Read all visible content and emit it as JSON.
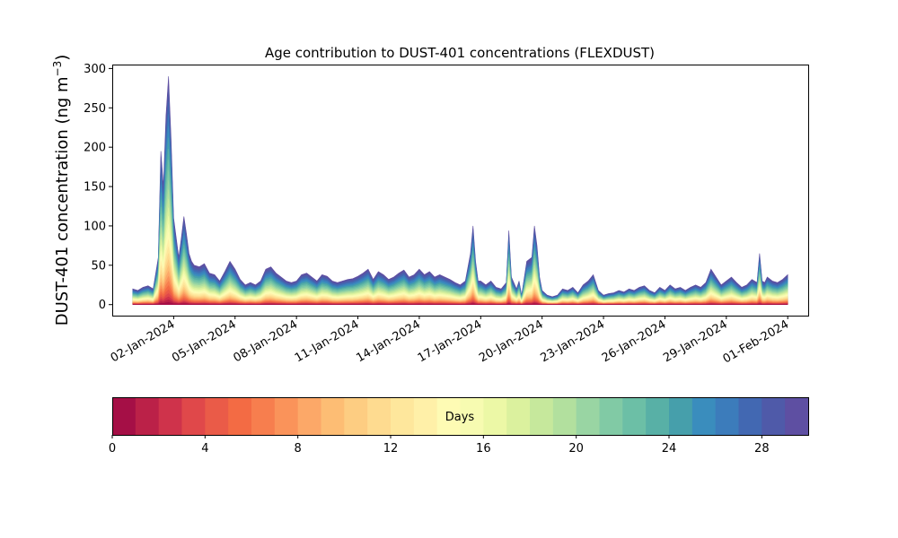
{
  "chart_data": {
    "type": "area",
    "stacked": true,
    "title": "Age contribution to DUST-401 concentrations (FLEXDUST)",
    "xlabel": "",
    "ylabel": "DUST-401 concentration (ng m",
    "ylabel_sup": "−3",
    "ylabel_close": ")",
    "x_start": "2023-12-31",
    "x_end": "2024-02-01",
    "xlim": [
      "2023-12-30",
      "2024-02-02"
    ],
    "ylim": [
      -14,
      305
    ],
    "yticks": [
      0,
      50,
      100,
      150,
      200,
      250,
      300
    ],
    "xtick_labels": [
      "02-Jan-2024",
      "05-Jan-2024",
      "08-Jan-2024",
      "11-Jan-2024",
      "14-Jan-2024",
      "17-Jan-2024",
      "20-Jan-2024",
      "23-Jan-2024",
      "26-Jan-2024",
      "29-Jan-2024",
      "01-Feb-2024"
    ],
    "age_days": [
      0,
      1,
      2,
      3,
      4,
      5,
      6,
      7,
      8,
      9,
      10,
      11,
      12,
      13,
      14,
      15,
      16,
      17,
      18,
      19,
      20,
      21,
      22,
      23,
      24,
      25,
      26,
      27,
      28,
      29
    ],
    "total_concentration": [
      [
        "2023-12-31T00",
        20
      ],
      [
        "2023-12-31T06",
        18
      ],
      [
        "2023-12-31T12",
        22
      ],
      [
        "2023-12-31T18",
        24
      ],
      [
        "2024-01-01T00",
        20
      ],
      [
        "2024-01-01T06",
        60
      ],
      [
        "2024-01-01T09",
        195
      ],
      [
        "2024-01-01T12",
        150
      ],
      [
        "2024-01-01T15",
        240
      ],
      [
        "2024-01-01T18",
        290
      ],
      [
        "2024-01-01T21",
        210
      ],
      [
        "2024-01-02T00",
        110
      ],
      [
        "2024-01-02T06",
        60
      ],
      [
        "2024-01-02T09",
        85
      ],
      [
        "2024-01-02T12",
        112
      ],
      [
        "2024-01-02T15",
        90
      ],
      [
        "2024-01-02T18",
        65
      ],
      [
        "2024-01-02T21",
        55
      ],
      [
        "2024-01-03T00",
        50
      ],
      [
        "2024-01-03T06",
        48
      ],
      [
        "2024-01-03T12",
        52
      ],
      [
        "2024-01-03T18",
        40
      ],
      [
        "2024-01-04T00",
        38
      ],
      [
        "2024-01-04T06",
        30
      ],
      [
        "2024-01-04T12",
        42
      ],
      [
        "2024-01-04T18",
        55
      ],
      [
        "2024-01-05T00",
        45
      ],
      [
        "2024-01-05T06",
        32
      ],
      [
        "2024-01-05T12",
        25
      ],
      [
        "2024-01-05T18",
        28
      ],
      [
        "2024-01-06T00",
        25
      ],
      [
        "2024-01-06T06",
        30
      ],
      [
        "2024-01-06T12",
        45
      ],
      [
        "2024-01-06T18",
        48
      ],
      [
        "2024-01-07T00",
        40
      ],
      [
        "2024-01-07T06",
        35
      ],
      [
        "2024-01-07T12",
        30
      ],
      [
        "2024-01-07T18",
        28
      ],
      [
        "2024-01-08T00",
        30
      ],
      [
        "2024-01-08T06",
        38
      ],
      [
        "2024-01-08T12",
        40
      ],
      [
        "2024-01-08T18",
        35
      ],
      [
        "2024-01-09T00",
        30
      ],
      [
        "2024-01-09T06",
        38
      ],
      [
        "2024-01-09T12",
        36
      ],
      [
        "2024-01-09T18",
        30
      ],
      [
        "2024-01-10T00",
        28
      ],
      [
        "2024-01-10T06",
        30
      ],
      [
        "2024-01-10T12",
        32
      ],
      [
        "2024-01-10T18",
        33
      ],
      [
        "2024-01-11T00",
        36
      ],
      [
        "2024-01-11T06",
        40
      ],
      [
        "2024-01-11T12",
        45
      ],
      [
        "2024-01-11T18",
        32
      ],
      [
        "2024-01-12T00",
        42
      ],
      [
        "2024-01-12T06",
        38
      ],
      [
        "2024-01-12T12",
        32
      ],
      [
        "2024-01-12T18",
        35
      ],
      [
        "2024-01-13T00",
        40
      ],
      [
        "2024-01-13T06",
        44
      ],
      [
        "2024-01-13T12",
        35
      ],
      [
        "2024-01-13T18",
        38
      ],
      [
        "2024-01-14T00",
        45
      ],
      [
        "2024-01-14T06",
        38
      ],
      [
        "2024-01-14T12",
        42
      ],
      [
        "2024-01-14T18",
        35
      ],
      [
        "2024-01-15T00",
        38
      ],
      [
        "2024-01-15T06",
        35
      ],
      [
        "2024-01-15T12",
        32
      ],
      [
        "2024-01-15T18",
        28
      ],
      [
        "2024-01-16T00",
        25
      ],
      [
        "2024-01-16T06",
        30
      ],
      [
        "2024-01-16T12",
        65
      ],
      [
        "2024-01-16T15",
        100
      ],
      [
        "2024-01-16T18",
        55
      ],
      [
        "2024-01-16T21",
        30
      ],
      [
        "2024-01-17T00",
        30
      ],
      [
        "2024-01-17T06",
        25
      ],
      [
        "2024-01-17T12",
        30
      ],
      [
        "2024-01-17T18",
        22
      ],
      [
        "2024-01-18T00",
        20
      ],
      [
        "2024-01-18T06",
        28
      ],
      [
        "2024-01-18T09",
        94
      ],
      [
        "2024-01-18T12",
        35
      ],
      [
        "2024-01-18T18",
        20
      ],
      [
        "2024-01-18T21",
        30
      ],
      [
        "2024-01-19T00",
        12
      ],
      [
        "2024-01-19T06",
        55
      ],
      [
        "2024-01-19T12",
        60
      ],
      [
        "2024-01-19T15",
        100
      ],
      [
        "2024-01-19T18",
        75
      ],
      [
        "2024-01-19T21",
        35
      ],
      [
        "2024-01-20T00",
        18
      ],
      [
        "2024-01-20T06",
        12
      ],
      [
        "2024-01-20T12",
        10
      ],
      [
        "2024-01-20T18",
        12
      ],
      [
        "2024-01-21T00",
        20
      ],
      [
        "2024-01-21T06",
        18
      ],
      [
        "2024-01-21T12",
        22
      ],
      [
        "2024-01-21T18",
        15
      ],
      [
        "2024-01-22T00",
        25
      ],
      [
        "2024-01-22T06",
        30
      ],
      [
        "2024-01-22T12",
        38
      ],
      [
        "2024-01-22T18",
        18
      ],
      [
        "2024-01-23T00",
        12
      ],
      [
        "2024-01-23T06",
        14
      ],
      [
        "2024-01-23T12",
        15
      ],
      [
        "2024-01-23T18",
        18
      ],
      [
        "2024-01-24T00",
        16
      ],
      [
        "2024-01-24T06",
        20
      ],
      [
        "2024-01-24T12",
        18
      ],
      [
        "2024-01-24T18",
        22
      ],
      [
        "2024-01-25T00",
        24
      ],
      [
        "2024-01-25T06",
        18
      ],
      [
        "2024-01-25T12",
        15
      ],
      [
        "2024-01-25T18",
        22
      ],
      [
        "2024-01-26T00",
        18
      ],
      [
        "2024-01-26T06",
        25
      ],
      [
        "2024-01-26T12",
        20
      ],
      [
        "2024-01-26T18",
        22
      ],
      [
        "2024-01-27T00",
        18
      ],
      [
        "2024-01-27T06",
        22
      ],
      [
        "2024-01-27T12",
        25
      ],
      [
        "2024-01-27T18",
        22
      ],
      [
        "2024-01-28T00",
        28
      ],
      [
        "2024-01-28T06",
        45
      ],
      [
        "2024-01-28T12",
        35
      ],
      [
        "2024-01-28T18",
        25
      ],
      [
        "2024-01-29T00",
        30
      ],
      [
        "2024-01-29T06",
        35
      ],
      [
        "2024-01-29T12",
        28
      ],
      [
        "2024-01-29T18",
        22
      ],
      [
        "2024-01-30T00",
        25
      ],
      [
        "2024-01-30T06",
        32
      ],
      [
        "2024-01-30T12",
        28
      ],
      [
        "2024-01-30T15",
        65
      ],
      [
        "2024-01-30T18",
        30
      ],
      [
        "2024-01-30T21",
        28
      ],
      [
        "2024-01-31T00",
        35
      ],
      [
        "2024-01-31T06",
        30
      ],
      [
        "2024-01-31T12",
        28
      ],
      [
        "2024-01-31T18",
        32
      ],
      [
        "2024-02-01T00",
        38
      ]
    ]
  },
  "colorbar": {
    "label": "Days",
    "range": [
      0,
      30
    ],
    "ticks": [
      0,
      4,
      8,
      12,
      16,
      20,
      24,
      28
    ],
    "colors": [
      "#a50f46",
      "#bb2148",
      "#cf334b",
      "#e0484a",
      "#ea5b48",
      "#f36b44",
      "#f77e4e",
      "#fa935a",
      "#fca868",
      "#fdbd74",
      "#fdcd82",
      "#fedb90",
      "#fee79c",
      "#fff0a8",
      "#fefbb4",
      "#f7fbb1",
      "#ecf8a6",
      "#dbf19e",
      "#c6e89c",
      "#b2e09e",
      "#99d5a3",
      "#81caa5",
      "#6cbfa6",
      "#58b0a6",
      "#469fab",
      "#3a8dbd",
      "#3c7cbb",
      "#4268b2",
      "#4f5aa9",
      "#5e4fa2"
    ]
  }
}
